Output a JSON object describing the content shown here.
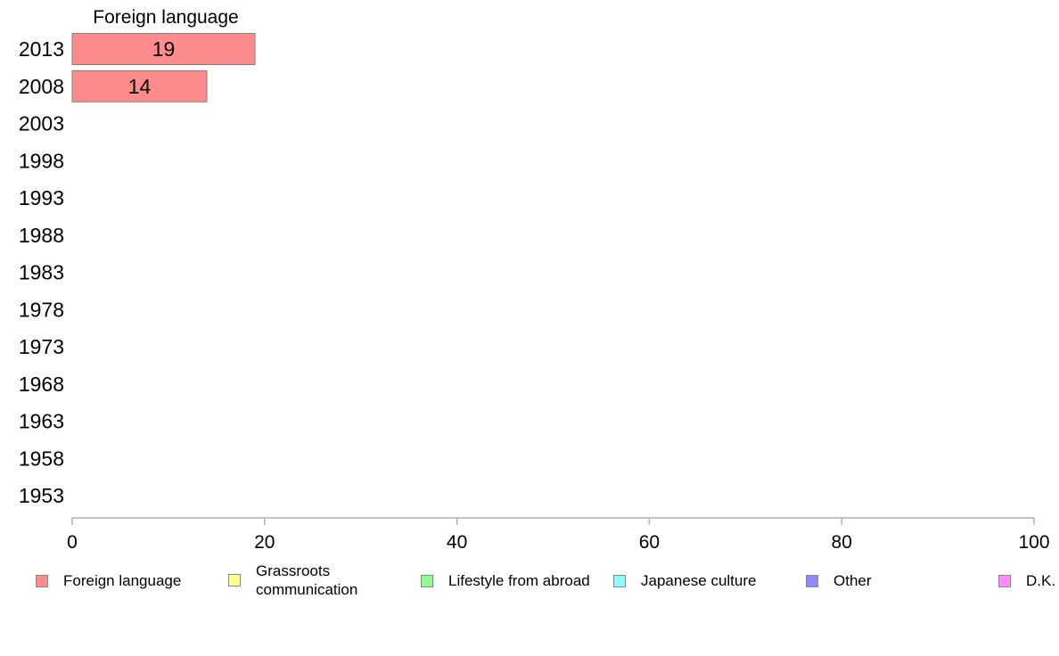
{
  "chart_data": {
    "type": "bar",
    "orientation": "horizontal",
    "stacked": true,
    "categories": [
      "2013",
      "2008",
      "2003",
      "1998",
      "1993",
      "1988",
      "1983",
      "1978",
      "1973",
      "1968",
      "1963",
      "1958",
      "1953"
    ],
    "series": [
      {
        "name": "Foreign language",
        "color": "#ff8c8c",
        "values": [
          19,
          14,
          null,
          null,
          null,
          null,
          null,
          null,
          null,
          null,
          null,
          null,
          null
        ]
      }
    ],
    "series_header": "Foreign language",
    "xlim": [
      0,
      100
    ],
    "xticks": [
      0,
      20,
      40,
      60,
      80,
      100
    ],
    "grid": false,
    "legend_position": "bottom"
  },
  "legend": [
    {
      "label": "Foreign language",
      "color": "#ff8c8c"
    },
    {
      "label": "Grassroots\ncommunication",
      "color": "#ffff8c"
    },
    {
      "label": "Lifestyle from abroad",
      "color": "#8cff8c"
    },
    {
      "label": "Japanese culture",
      "color": "#8cffff"
    },
    {
      "label": "Other",
      "color": "#8c8cff"
    },
    {
      "label": "D.K.",
      "color": "#ff8cff"
    }
  ]
}
